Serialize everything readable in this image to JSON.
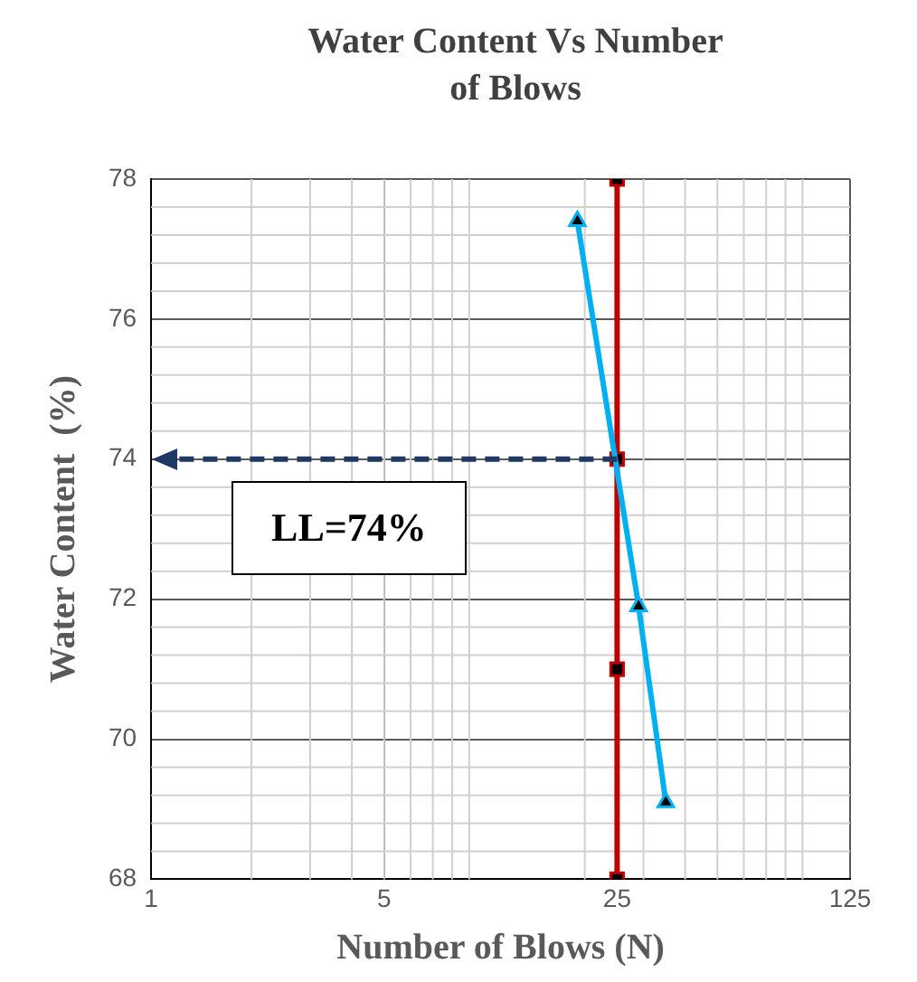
{
  "chart_data": {
    "type": "line",
    "title": "Water Content Vs Number of Blows",
    "xlabel": "Number of Blows (N)",
    "ylabel": "Water Content  (%)",
    "log": "x",
    "xlim": [
      1,
      125
    ],
    "xticks": [
      1,
      5,
      25,
      125
    ],
    "ylim": [
      68,
      78
    ],
    "yticks": [
      68,
      70,
      72,
      74,
      76,
      78
    ],
    "grid": true,
    "legend": false,
    "series": [
      {
        "color": "#00b0f0",
        "x": [
          19,
          29,
          35
        ],
        "values": [
          77.4,
          71.9,
          69.1
        ],
        "marker": "triangle"
      },
      {
        "color": "#c00000",
        "x": [
          25,
          25,
          25,
          25
        ],
        "values": [
          78,
          74,
          71,
          68
        ],
        "marker": "square"
      }
    ],
    "ref_lines": [
      {
        "axis": "y",
        "value": 74,
        "color": "#1f3864",
        "line_style": "dashed"
      }
    ],
    "annotations": [
      "LL=74%"
    ]
  }
}
